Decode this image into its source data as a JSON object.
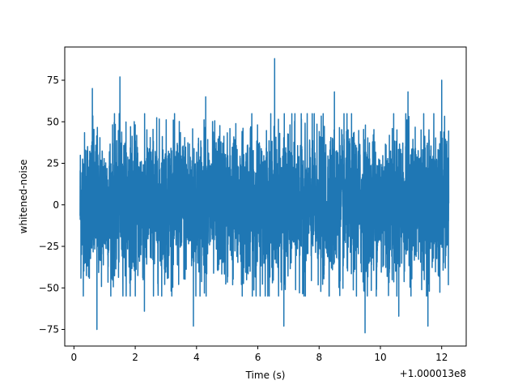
{
  "chart_data": {
    "type": "line",
    "xlabel": "Time (s)",
    "ylabel": "whitened-noise",
    "x_offset_label": "+1.000013e8",
    "xlim": [
      -0.3,
      12.8
    ],
    "ylim": [
      -85,
      95
    ],
    "x_ticks": [
      0,
      2,
      4,
      6,
      8,
      10,
      12
    ],
    "x_tick_labels": [
      "0",
      "2",
      "4",
      "6",
      "8",
      "10",
      "12"
    ],
    "y_ticks": [
      -75,
      -50,
      -25,
      0,
      25,
      50,
      75
    ],
    "y_tick_labels": [
      "−75",
      "−50",
      "−25",
      "0",
      "25",
      "50",
      "75"
    ],
    "series": [
      {
        "color": "#1f77b4",
        "x_range": [
          0.2,
          12.23
        ],
        "typical_range": [
          -45,
          45
        ],
        "peaks": [
          {
            "x": 0.6,
            "y": 70
          },
          {
            "x": 1.5,
            "y": 77
          },
          {
            "x": 6.55,
            "y": 88
          },
          {
            "x": 12.0,
            "y": 75
          },
          {
            "x": 4.3,
            "y": 65
          },
          {
            "x": 8.5,
            "y": 68
          },
          {
            "x": 10.9,
            "y": 68
          }
        ],
        "troughs": [
          {
            "x": 0.75,
            "y": -75
          },
          {
            "x": 3.9,
            "y": -73
          },
          {
            "x": 6.85,
            "y": -73
          },
          {
            "x": 9.5,
            "y": -77
          },
          {
            "x": 11.55,
            "y": -73
          },
          {
            "x": 2.3,
            "y": -64
          },
          {
            "x": 10.6,
            "y": -67
          }
        ]
      }
    ],
    "grid": false,
    "legend": "none"
  }
}
